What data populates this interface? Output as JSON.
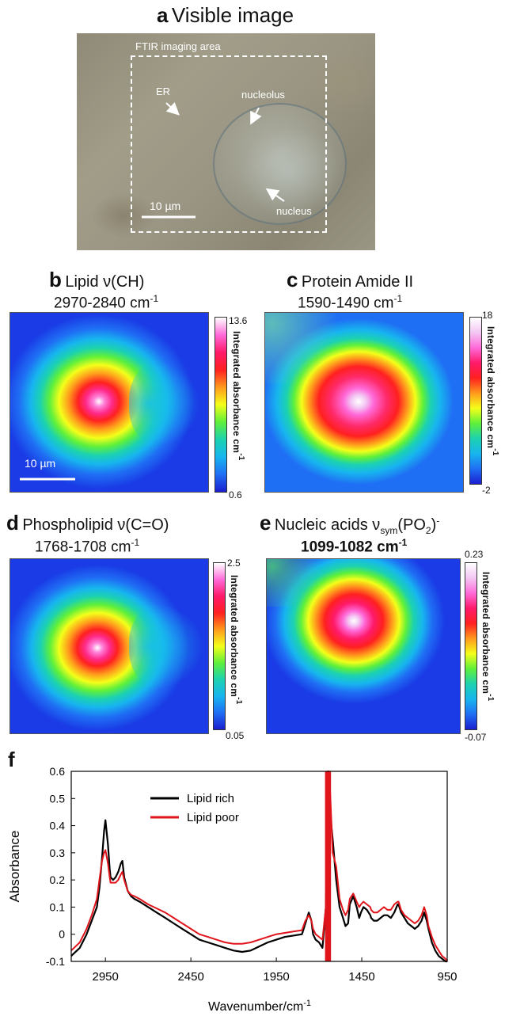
{
  "panel_a": {
    "letter": "a",
    "title": "Visible image",
    "box_label": "FTIR imaging area",
    "labels": {
      "er": "ER",
      "nucleolus": "nucleolus",
      "nucleus": "nucleus"
    },
    "scale_bar": "10 µm"
  },
  "panel_b": {
    "letter": "b",
    "title": "Lipid ν(CH)",
    "range": "2970-2840 cm",
    "range_sup": "-1",
    "cbar_max": "13.6",
    "cbar_min": "0.6",
    "cbar_label": "Integrated absorbance cm",
    "cbar_label_sup": "-1",
    "scale_bar": "10 µm"
  },
  "panel_c": {
    "letter": "c",
    "title": "Protein Amide II",
    "range": "1590-1490 cm",
    "range_sup": "-1",
    "cbar_max": "18",
    "cbar_min": "-2",
    "cbar_label": "Integrated absorbance cm",
    "cbar_label_sup": "-1"
  },
  "panel_d": {
    "letter": "d",
    "title": "Phospholipid ν(C=O)",
    "range": "1768-1708 cm",
    "range_sup": "-1",
    "cbar_max": "2.5",
    "cbar_min": "0.05",
    "cbar_label": "Integrated absorbance cm",
    "cbar_label_sup": "-1"
  },
  "panel_e": {
    "letter": "e",
    "title_pre": "Nucleic acids ν",
    "title_sub": "sym",
    "title_mid": "(PO",
    "title_sub2": "2",
    "title_post": ")",
    "title_sup": "-",
    "range": "1099-1082 cm",
    "range_sup": "-1",
    "cbar_max": "0.23",
    "cbar_min": "-0.07",
    "cbar_label": "Integrated absorbance cm",
    "cbar_label_sup": "-1"
  },
  "colors": {
    "rich": "#000000",
    "poor": "#e0141b"
  },
  "chart_data": {
    "type": "line",
    "panel_letter": "f",
    "xlabel": "Wavenumber/cm",
    "xlabel_sup": "-1",
    "ylabel": "Absorbance",
    "xlim": [
      3150,
      950
    ],
    "ylim": [
      -0.1,
      0.6
    ],
    "x_ticks": [
      2950,
      2450,
      1950,
      1450,
      950
    ],
    "y_ticks": [
      -0.1,
      0,
      0.1,
      0.2,
      0.3,
      0.4,
      0.5,
      0.6
    ],
    "y_tick_labels": [
      "-0.1",
      "0",
      "0.1",
      "0.2",
      "0.3",
      "0.4",
      "0.5",
      "0.6"
    ],
    "legend_position": "top-left",
    "series": [
      {
        "name": "Lipid rich",
        "color": "#000000",
        "x": [
          3150,
          3100,
          3060,
          3030,
          3000,
          2985,
          2970,
          2958,
          2950,
          2935,
          2925,
          2920,
          2905,
          2890,
          2875,
          2860,
          2851,
          2840,
          2820,
          2800,
          2780,
          2750,
          2700,
          2650,
          2600,
          2550,
          2500,
          2450,
          2400,
          2350,
          2300,
          2250,
          2200,
          2150,
          2100,
          2050,
          2000,
          1950,
          1900,
          1850,
          1800,
          1780,
          1760,
          1745,
          1735,
          1720,
          1700,
          1680,
          1660,
          1650,
          1640,
          1620,
          1600,
          1580,
          1560,
          1545,
          1530,
          1520,
          1500,
          1480,
          1465,
          1455,
          1440,
          1420,
          1400,
          1395,
          1380,
          1360,
          1340,
          1320,
          1300,
          1280,
          1260,
          1240,
          1235,
          1220,
          1200,
          1180,
          1160,
          1140,
          1120,
          1100,
          1085,
          1070,
          1060,
          1040,
          1020,
          1000,
          980,
          960,
          950
        ],
        "y": [
          -0.08,
          -0.05,
          0.0,
          0.05,
          0.1,
          0.17,
          0.28,
          0.38,
          0.42,
          0.33,
          0.24,
          0.21,
          0.2,
          0.21,
          0.23,
          0.26,
          0.27,
          0.21,
          0.16,
          0.14,
          0.13,
          0.12,
          0.1,
          0.08,
          0.06,
          0.04,
          0.02,
          0.0,
          -0.02,
          -0.03,
          -0.04,
          -0.05,
          -0.06,
          -0.065,
          -0.06,
          -0.045,
          -0.03,
          -0.02,
          -0.01,
          -0.005,
          0.0,
          0.04,
          0.08,
          0.05,
          0.0,
          -0.02,
          -0.03,
          -0.05,
          0.1,
          0.42,
          0.48,
          0.35,
          0.2,
          0.1,
          0.06,
          0.03,
          0.04,
          0.11,
          0.14,
          0.1,
          0.06,
          0.08,
          0.1,
          0.09,
          0.07,
          0.06,
          0.05,
          0.05,
          0.06,
          0.07,
          0.07,
          0.06,
          0.08,
          0.11,
          0.11,
          0.08,
          0.06,
          0.04,
          0.03,
          0.02,
          0.03,
          0.05,
          0.08,
          0.05,
          0.02,
          -0.03,
          -0.06,
          -0.08,
          -0.09,
          -0.1,
          -0.1
        ]
      },
      {
        "name": "Lipid poor",
        "color": "#e0141b",
        "x": [
          3150,
          3100,
          3060,
          3030,
          3000,
          2985,
          2970,
          2958,
          2950,
          2935,
          2925,
          2920,
          2905,
          2890,
          2875,
          2860,
          2851,
          2840,
          2820,
          2800,
          2780,
          2750,
          2700,
          2650,
          2600,
          2550,
          2500,
          2450,
          2400,
          2350,
          2300,
          2250,
          2200,
          2150,
          2100,
          2050,
          2000,
          1950,
          1900,
          1850,
          1800,
          1780,
          1760,
          1745,
          1735,
          1720,
          1700,
          1680,
          1660,
          1650,
          1640,
          1620,
          1600,
          1580,
          1560,
          1545,
          1530,
          1520,
          1500,
          1480,
          1465,
          1455,
          1440,
          1420,
          1400,
          1395,
          1380,
          1360,
          1340,
          1320,
          1300,
          1280,
          1260,
          1240,
          1235,
          1220,
          1200,
          1180,
          1160,
          1140,
          1120,
          1100,
          1085,
          1070,
          1060,
          1040,
          1020,
          1000,
          980,
          960,
          950
        ],
        "y": [
          -0.06,
          -0.03,
          0.02,
          0.07,
          0.13,
          0.2,
          0.27,
          0.3,
          0.31,
          0.26,
          0.21,
          0.19,
          0.19,
          0.19,
          0.2,
          0.22,
          0.23,
          0.2,
          0.16,
          0.145,
          0.14,
          0.13,
          0.11,
          0.095,
          0.08,
          0.06,
          0.04,
          0.02,
          0.0,
          -0.01,
          -0.02,
          -0.03,
          -0.035,
          -0.035,
          -0.03,
          -0.02,
          -0.01,
          0.0,
          0.005,
          0.01,
          0.015,
          0.05,
          0.07,
          0.05,
          0.02,
          0.0,
          -0.01,
          -0.02,
          0.1,
          0.6,
          0.6,
          0.3,
          0.25,
          0.13,
          0.09,
          0.07,
          0.09,
          0.13,
          0.15,
          0.12,
          0.1,
          0.11,
          0.12,
          0.11,
          0.1,
          0.09,
          0.08,
          0.08,
          0.09,
          0.1,
          0.09,
          0.09,
          0.11,
          0.12,
          0.12,
          0.09,
          0.07,
          0.06,
          0.05,
          0.04,
          0.05,
          0.07,
          0.1,
          0.07,
          0.03,
          -0.01,
          -0.04,
          -0.06,
          -0.08,
          -0.09,
          -0.1
        ]
      }
    ]
  }
}
